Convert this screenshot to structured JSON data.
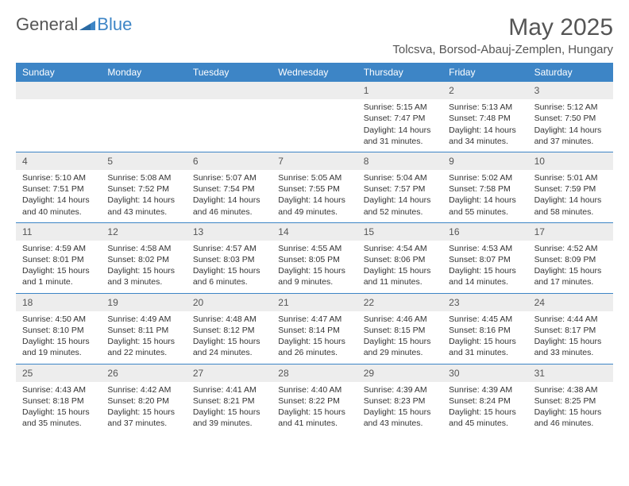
{
  "brand": {
    "part1": "General",
    "part2": "Blue"
  },
  "title": "May 2025",
  "location": "Tolcsva, Borsod-Abauj-Zemplen, Hungary",
  "colors": {
    "header_bg": "#3d85c6",
    "header_fg": "#ffffff",
    "daynum_bg": "#ededed",
    "text": "#333333",
    "title": "#555555",
    "border": "#3d85c6"
  },
  "typography": {
    "month_title_fontsize": 30,
    "location_fontsize": 15,
    "header_fontsize": 12,
    "cell_fontsize": 10.5
  },
  "dayNames": [
    "Sunday",
    "Monday",
    "Tuesday",
    "Wednesday",
    "Thursday",
    "Friday",
    "Saturday"
  ],
  "weeks": [
    [
      {
        "n": "",
        "lines": []
      },
      {
        "n": "",
        "lines": []
      },
      {
        "n": "",
        "lines": []
      },
      {
        "n": "",
        "lines": []
      },
      {
        "n": "1",
        "lines": [
          "Sunrise: 5:15 AM",
          "Sunset: 7:47 PM",
          "Daylight: 14 hours and 31 minutes."
        ]
      },
      {
        "n": "2",
        "lines": [
          "Sunrise: 5:13 AM",
          "Sunset: 7:48 PM",
          "Daylight: 14 hours and 34 minutes."
        ]
      },
      {
        "n": "3",
        "lines": [
          "Sunrise: 5:12 AM",
          "Sunset: 7:50 PM",
          "Daylight: 14 hours and 37 minutes."
        ]
      }
    ],
    [
      {
        "n": "4",
        "lines": [
          "Sunrise: 5:10 AM",
          "Sunset: 7:51 PM",
          "Daylight: 14 hours and 40 minutes."
        ]
      },
      {
        "n": "5",
        "lines": [
          "Sunrise: 5:08 AM",
          "Sunset: 7:52 PM",
          "Daylight: 14 hours and 43 minutes."
        ]
      },
      {
        "n": "6",
        "lines": [
          "Sunrise: 5:07 AM",
          "Sunset: 7:54 PM",
          "Daylight: 14 hours and 46 minutes."
        ]
      },
      {
        "n": "7",
        "lines": [
          "Sunrise: 5:05 AM",
          "Sunset: 7:55 PM",
          "Daylight: 14 hours and 49 minutes."
        ]
      },
      {
        "n": "8",
        "lines": [
          "Sunrise: 5:04 AM",
          "Sunset: 7:57 PM",
          "Daylight: 14 hours and 52 minutes."
        ]
      },
      {
        "n": "9",
        "lines": [
          "Sunrise: 5:02 AM",
          "Sunset: 7:58 PM",
          "Daylight: 14 hours and 55 minutes."
        ]
      },
      {
        "n": "10",
        "lines": [
          "Sunrise: 5:01 AM",
          "Sunset: 7:59 PM",
          "Daylight: 14 hours and 58 minutes."
        ]
      }
    ],
    [
      {
        "n": "11",
        "lines": [
          "Sunrise: 4:59 AM",
          "Sunset: 8:01 PM",
          "Daylight: 15 hours and 1 minute."
        ]
      },
      {
        "n": "12",
        "lines": [
          "Sunrise: 4:58 AM",
          "Sunset: 8:02 PM",
          "Daylight: 15 hours and 3 minutes."
        ]
      },
      {
        "n": "13",
        "lines": [
          "Sunrise: 4:57 AM",
          "Sunset: 8:03 PM",
          "Daylight: 15 hours and 6 minutes."
        ]
      },
      {
        "n": "14",
        "lines": [
          "Sunrise: 4:55 AM",
          "Sunset: 8:05 PM",
          "Daylight: 15 hours and 9 minutes."
        ]
      },
      {
        "n": "15",
        "lines": [
          "Sunrise: 4:54 AM",
          "Sunset: 8:06 PM",
          "Daylight: 15 hours and 11 minutes."
        ]
      },
      {
        "n": "16",
        "lines": [
          "Sunrise: 4:53 AM",
          "Sunset: 8:07 PM",
          "Daylight: 15 hours and 14 minutes."
        ]
      },
      {
        "n": "17",
        "lines": [
          "Sunrise: 4:52 AM",
          "Sunset: 8:09 PM",
          "Daylight: 15 hours and 17 minutes."
        ]
      }
    ],
    [
      {
        "n": "18",
        "lines": [
          "Sunrise: 4:50 AM",
          "Sunset: 8:10 PM",
          "Daylight: 15 hours and 19 minutes."
        ]
      },
      {
        "n": "19",
        "lines": [
          "Sunrise: 4:49 AM",
          "Sunset: 8:11 PM",
          "Daylight: 15 hours and 22 minutes."
        ]
      },
      {
        "n": "20",
        "lines": [
          "Sunrise: 4:48 AM",
          "Sunset: 8:12 PM",
          "Daylight: 15 hours and 24 minutes."
        ]
      },
      {
        "n": "21",
        "lines": [
          "Sunrise: 4:47 AM",
          "Sunset: 8:14 PM",
          "Daylight: 15 hours and 26 minutes."
        ]
      },
      {
        "n": "22",
        "lines": [
          "Sunrise: 4:46 AM",
          "Sunset: 8:15 PM",
          "Daylight: 15 hours and 29 minutes."
        ]
      },
      {
        "n": "23",
        "lines": [
          "Sunrise: 4:45 AM",
          "Sunset: 8:16 PM",
          "Daylight: 15 hours and 31 minutes."
        ]
      },
      {
        "n": "24",
        "lines": [
          "Sunrise: 4:44 AM",
          "Sunset: 8:17 PM",
          "Daylight: 15 hours and 33 minutes."
        ]
      }
    ],
    [
      {
        "n": "25",
        "lines": [
          "Sunrise: 4:43 AM",
          "Sunset: 8:18 PM",
          "Daylight: 15 hours and 35 minutes."
        ]
      },
      {
        "n": "26",
        "lines": [
          "Sunrise: 4:42 AM",
          "Sunset: 8:20 PM",
          "Daylight: 15 hours and 37 minutes."
        ]
      },
      {
        "n": "27",
        "lines": [
          "Sunrise: 4:41 AM",
          "Sunset: 8:21 PM",
          "Daylight: 15 hours and 39 minutes."
        ]
      },
      {
        "n": "28",
        "lines": [
          "Sunrise: 4:40 AM",
          "Sunset: 8:22 PM",
          "Daylight: 15 hours and 41 minutes."
        ]
      },
      {
        "n": "29",
        "lines": [
          "Sunrise: 4:39 AM",
          "Sunset: 8:23 PM",
          "Daylight: 15 hours and 43 minutes."
        ]
      },
      {
        "n": "30",
        "lines": [
          "Sunrise: 4:39 AM",
          "Sunset: 8:24 PM",
          "Daylight: 15 hours and 45 minutes."
        ]
      },
      {
        "n": "31",
        "lines": [
          "Sunrise: 4:38 AM",
          "Sunset: 8:25 PM",
          "Daylight: 15 hours and 46 minutes."
        ]
      }
    ]
  ]
}
